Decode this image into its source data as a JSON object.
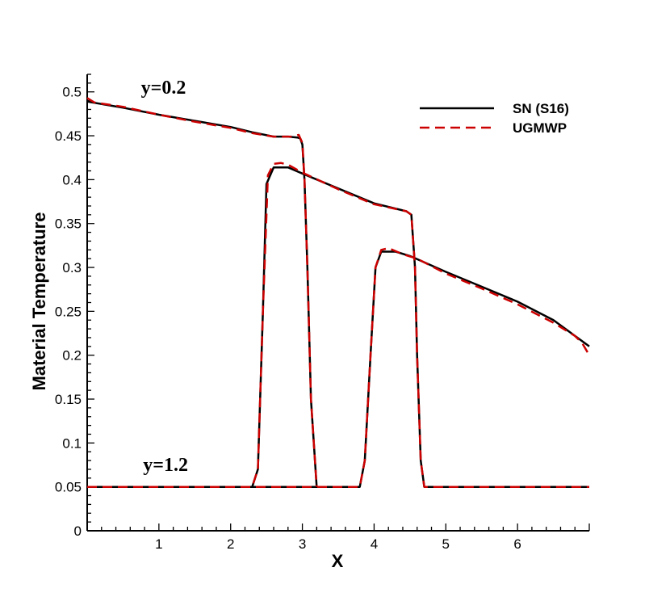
{
  "chart_data": {
    "type": "line",
    "title": "",
    "xlabel": "X",
    "ylabel": "Material Temperature",
    "xlim": [
      0,
      7
    ],
    "ylim": [
      0,
      0.52
    ],
    "xticks": [
      1,
      2,
      3,
      4,
      5,
      6
    ],
    "xtick_labels": [
      "1",
      "2",
      "3",
      "4",
      "5",
      "6"
    ],
    "yticks": [
      0,
      0.05,
      0.1,
      0.15,
      0.2,
      0.25,
      0.3,
      0.35,
      0.4,
      0.45,
      0.5
    ],
    "ytick_labels": [
      "0",
      "0.05",
      "0.1",
      "0.15",
      "0.2",
      "0.25",
      "0.3",
      "0.35",
      "0.4",
      "0.45",
      "0.5"
    ],
    "grid": false,
    "legend_position": "top-right",
    "annotations": [
      {
        "text": "y=0.2",
        "x": 0.75,
        "y": 0.498
      },
      {
        "text": "y=1.2",
        "x": 0.78,
        "y": 0.068
      }
    ],
    "series": [
      {
        "name": "SN (S16)",
        "color": "#000000",
        "dash": "solid",
        "curves": [
          {
            "x": [
              0,
              0.5,
              1,
              1.5,
              2,
              2.3,
              2.6,
              2.8,
              2.93,
              2.97,
              3.0,
              3.03,
              3.07,
              3.12,
              3.2
            ],
            "y": [
              0.489,
              0.482,
              0.474,
              0.467,
              0.46,
              0.454,
              0.449,
              0.449,
              0.448,
              0.447,
              0.44,
              0.4,
              0.3,
              0.15,
              0.05
            ]
          },
          {
            "x": [
              0,
              1,
              2,
              2.3,
              2.38,
              2.45,
              2.5,
              2.6,
              2.8,
              3,
              3.5,
              4,
              4.45,
              4.52,
              4.57,
              4.6,
              4.65,
              4.7,
              7
            ],
            "y": [
              0.05,
              0.05,
              0.05,
              0.05,
              0.07,
              0.25,
              0.395,
              0.414,
              0.414,
              0.407,
              0.39,
              0.373,
              0.364,
              0.36,
              0.3,
              0.2,
              0.08,
              0.05,
              0.05
            ]
          },
          {
            "x": [
              0,
              1,
              2,
              3,
              3.8,
              3.87,
              3.95,
              4.02,
              4.1,
              4.3,
              4.5,
              5,
              5.5,
              6,
              6.5,
              7
            ],
            "y": [
              0.05,
              0.05,
              0.05,
              0.05,
              0.05,
              0.08,
              0.2,
              0.3,
              0.318,
              0.318,
              0.313,
              0.295,
              0.278,
              0.261,
              0.24,
              0.21
            ]
          }
        ]
      },
      {
        "name": "UGMWP",
        "color": "#cc0000",
        "dash": "dashed",
        "curves": [
          {
            "x": [
              0,
              0.1,
              0.5,
              1,
              1.5,
              2,
              2.3,
              2.6,
              2.85,
              2.95,
              3.0,
              3.03,
              3.07,
              3.12,
              3.2
            ],
            "y": [
              0.493,
              0.488,
              0.483,
              0.474,
              0.466,
              0.459,
              0.453,
              0.449,
              0.449,
              0.451,
              0.442,
              0.4,
              0.3,
              0.15,
              0.05
            ]
          },
          {
            "x": [
              0,
              1,
              2,
              2.3,
              2.38,
              2.45,
              2.52,
              2.6,
              2.7,
              2.8,
              3,
              3.5,
              4,
              4.45,
              4.52,
              4.57,
              4.6,
              4.65,
              4.7,
              7
            ],
            "y": [
              0.05,
              0.05,
              0.05,
              0.05,
              0.07,
              0.25,
              0.405,
              0.418,
              0.419,
              0.417,
              0.408,
              0.389,
              0.372,
              0.364,
              0.36,
              0.3,
              0.2,
              0.08,
              0.05,
              0.05
            ]
          },
          {
            "x": [
              0,
              1,
              2,
              3,
              3.8,
              3.87,
              3.95,
              4.02,
              4.1,
              4.2,
              4.4,
              4.6,
              5,
              5.5,
              6,
              6.5,
              6.8,
              6.9,
              7
            ],
            "y": [
              0.05,
              0.05,
              0.05,
              0.05,
              0.05,
              0.08,
              0.2,
              0.3,
              0.32,
              0.322,
              0.315,
              0.31,
              0.293,
              0.276,
              0.258,
              0.237,
              0.222,
              0.214,
              0.2
            ]
          }
        ]
      }
    ]
  }
}
